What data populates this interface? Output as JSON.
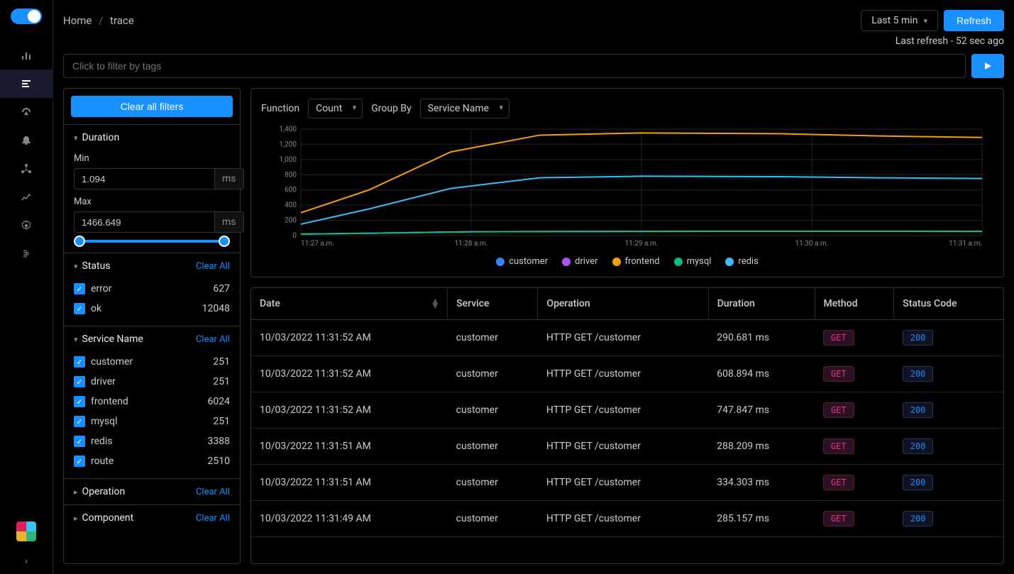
{
  "breadcrumb": {
    "home": "Home",
    "current": "trace"
  },
  "time": {
    "range": "Last 5 min",
    "refresh_btn": "Refresh",
    "last_refresh": "Last refresh - 52 sec ago"
  },
  "search": {
    "placeholder": "Click to filter by tags"
  },
  "filters": {
    "clear_all": "Clear all filters",
    "duration": {
      "title": "Duration",
      "min_label": "Min",
      "min_value": "1.094",
      "max_label": "Max",
      "max_value": "1466.649",
      "unit": "ms"
    },
    "status": {
      "title": "Status",
      "clear": "Clear All",
      "items": [
        {
          "label": "error",
          "count": "627"
        },
        {
          "label": "ok",
          "count": "12048"
        }
      ]
    },
    "service": {
      "title": "Service Name",
      "clear": "Clear All",
      "items": [
        {
          "label": "customer",
          "count": "251"
        },
        {
          "label": "driver",
          "count": "251"
        },
        {
          "label": "frontend",
          "count": "6024"
        },
        {
          "label": "mysql",
          "count": "251"
        },
        {
          "label": "redis",
          "count": "3388"
        },
        {
          "label": "route",
          "count": "2510"
        }
      ]
    },
    "operation": {
      "title": "Operation",
      "clear": "Clear All"
    },
    "component": {
      "title": "Component",
      "clear": "Clear All"
    }
  },
  "chart": {
    "function_label": "Function",
    "function_value": "Count",
    "groupby_label": "Group By",
    "groupby_value": "Service Name",
    "y_ticks": [
      "1,400",
      "1,200",
      "1,000",
      "800",
      "600",
      "400",
      "200",
      "0"
    ],
    "x_ticks": [
      "11:27 a.m.",
      "11:28 a.m.",
      "11:29 a.m.",
      "11:30 a.m.",
      "11:31 a.m."
    ],
    "legend": [
      {
        "label": "customer",
        "color": "#3b82f6"
      },
      {
        "label": "driver",
        "color": "#a855f7"
      },
      {
        "label": "frontend",
        "color": "#f59e0b"
      },
      {
        "label": "mysql",
        "color": "#10b981"
      },
      {
        "label": "redis",
        "color": "#38bdf8"
      }
    ],
    "series": {
      "frontend": {
        "color": "#f59e0b",
        "points": [
          [
            0,
            300
          ],
          [
            0.1,
            600
          ],
          [
            0.22,
            1100
          ],
          [
            0.35,
            1320
          ],
          [
            0.5,
            1350
          ],
          [
            0.7,
            1340
          ],
          [
            0.85,
            1310
          ],
          [
            1,
            1290
          ]
        ]
      },
      "redis": {
        "color": "#38bdf8",
        "points": [
          [
            0,
            150
          ],
          [
            0.1,
            350
          ],
          [
            0.22,
            620
          ],
          [
            0.35,
            760
          ],
          [
            0.5,
            780
          ],
          [
            0.7,
            775
          ],
          [
            0.85,
            760
          ],
          [
            1,
            750
          ]
        ]
      },
      "customer": {
        "color": "#3b82f6",
        "points": [
          [
            0,
            20
          ],
          [
            0.1,
            30
          ],
          [
            0.25,
            50
          ],
          [
            0.5,
            55
          ],
          [
            0.75,
            56
          ],
          [
            1,
            55
          ]
        ]
      },
      "driver": {
        "color": "#a855f7",
        "points": [
          [
            0,
            20
          ],
          [
            0.1,
            30
          ],
          [
            0.25,
            50
          ],
          [
            0.5,
            55
          ],
          [
            0.75,
            56
          ],
          [
            1,
            55
          ]
        ]
      },
      "mysql": {
        "color": "#10b981",
        "points": [
          [
            0,
            20
          ],
          [
            0.1,
            30
          ],
          [
            0.25,
            50
          ],
          [
            0.5,
            55
          ],
          [
            0.75,
            56
          ],
          [
            1,
            55
          ]
        ]
      }
    },
    "ylim": [
      0,
      1400
    ]
  },
  "table": {
    "columns": [
      "Date",
      "Service",
      "Operation",
      "Duration",
      "Method",
      "Status Code"
    ],
    "rows": [
      {
        "date": "10/03/2022 11:31:52 AM",
        "service": "customer",
        "operation": "HTTP GET /customer",
        "duration": "290.681 ms",
        "method": "GET",
        "status": "200"
      },
      {
        "date": "10/03/2022 11:31:52 AM",
        "service": "customer",
        "operation": "HTTP GET /customer",
        "duration": "608.894 ms",
        "method": "GET",
        "status": "200"
      },
      {
        "date": "10/03/2022 11:31:52 AM",
        "service": "customer",
        "operation": "HTTP GET /customer",
        "duration": "747.847 ms",
        "method": "GET",
        "status": "200"
      },
      {
        "date": "10/03/2022 11:31:51 AM",
        "service": "customer",
        "operation": "HTTP GET /customer",
        "duration": "288.209 ms",
        "method": "GET",
        "status": "200"
      },
      {
        "date": "10/03/2022 11:31:51 AM",
        "service": "customer",
        "operation": "HTTP GET /customer",
        "duration": "334.303 ms",
        "method": "GET",
        "status": "200"
      },
      {
        "date": "10/03/2022 11:31:49 AM",
        "service": "customer",
        "operation": "HTTP GET /customer",
        "duration": "285.157 ms",
        "method": "GET",
        "status": "200"
      }
    ]
  }
}
